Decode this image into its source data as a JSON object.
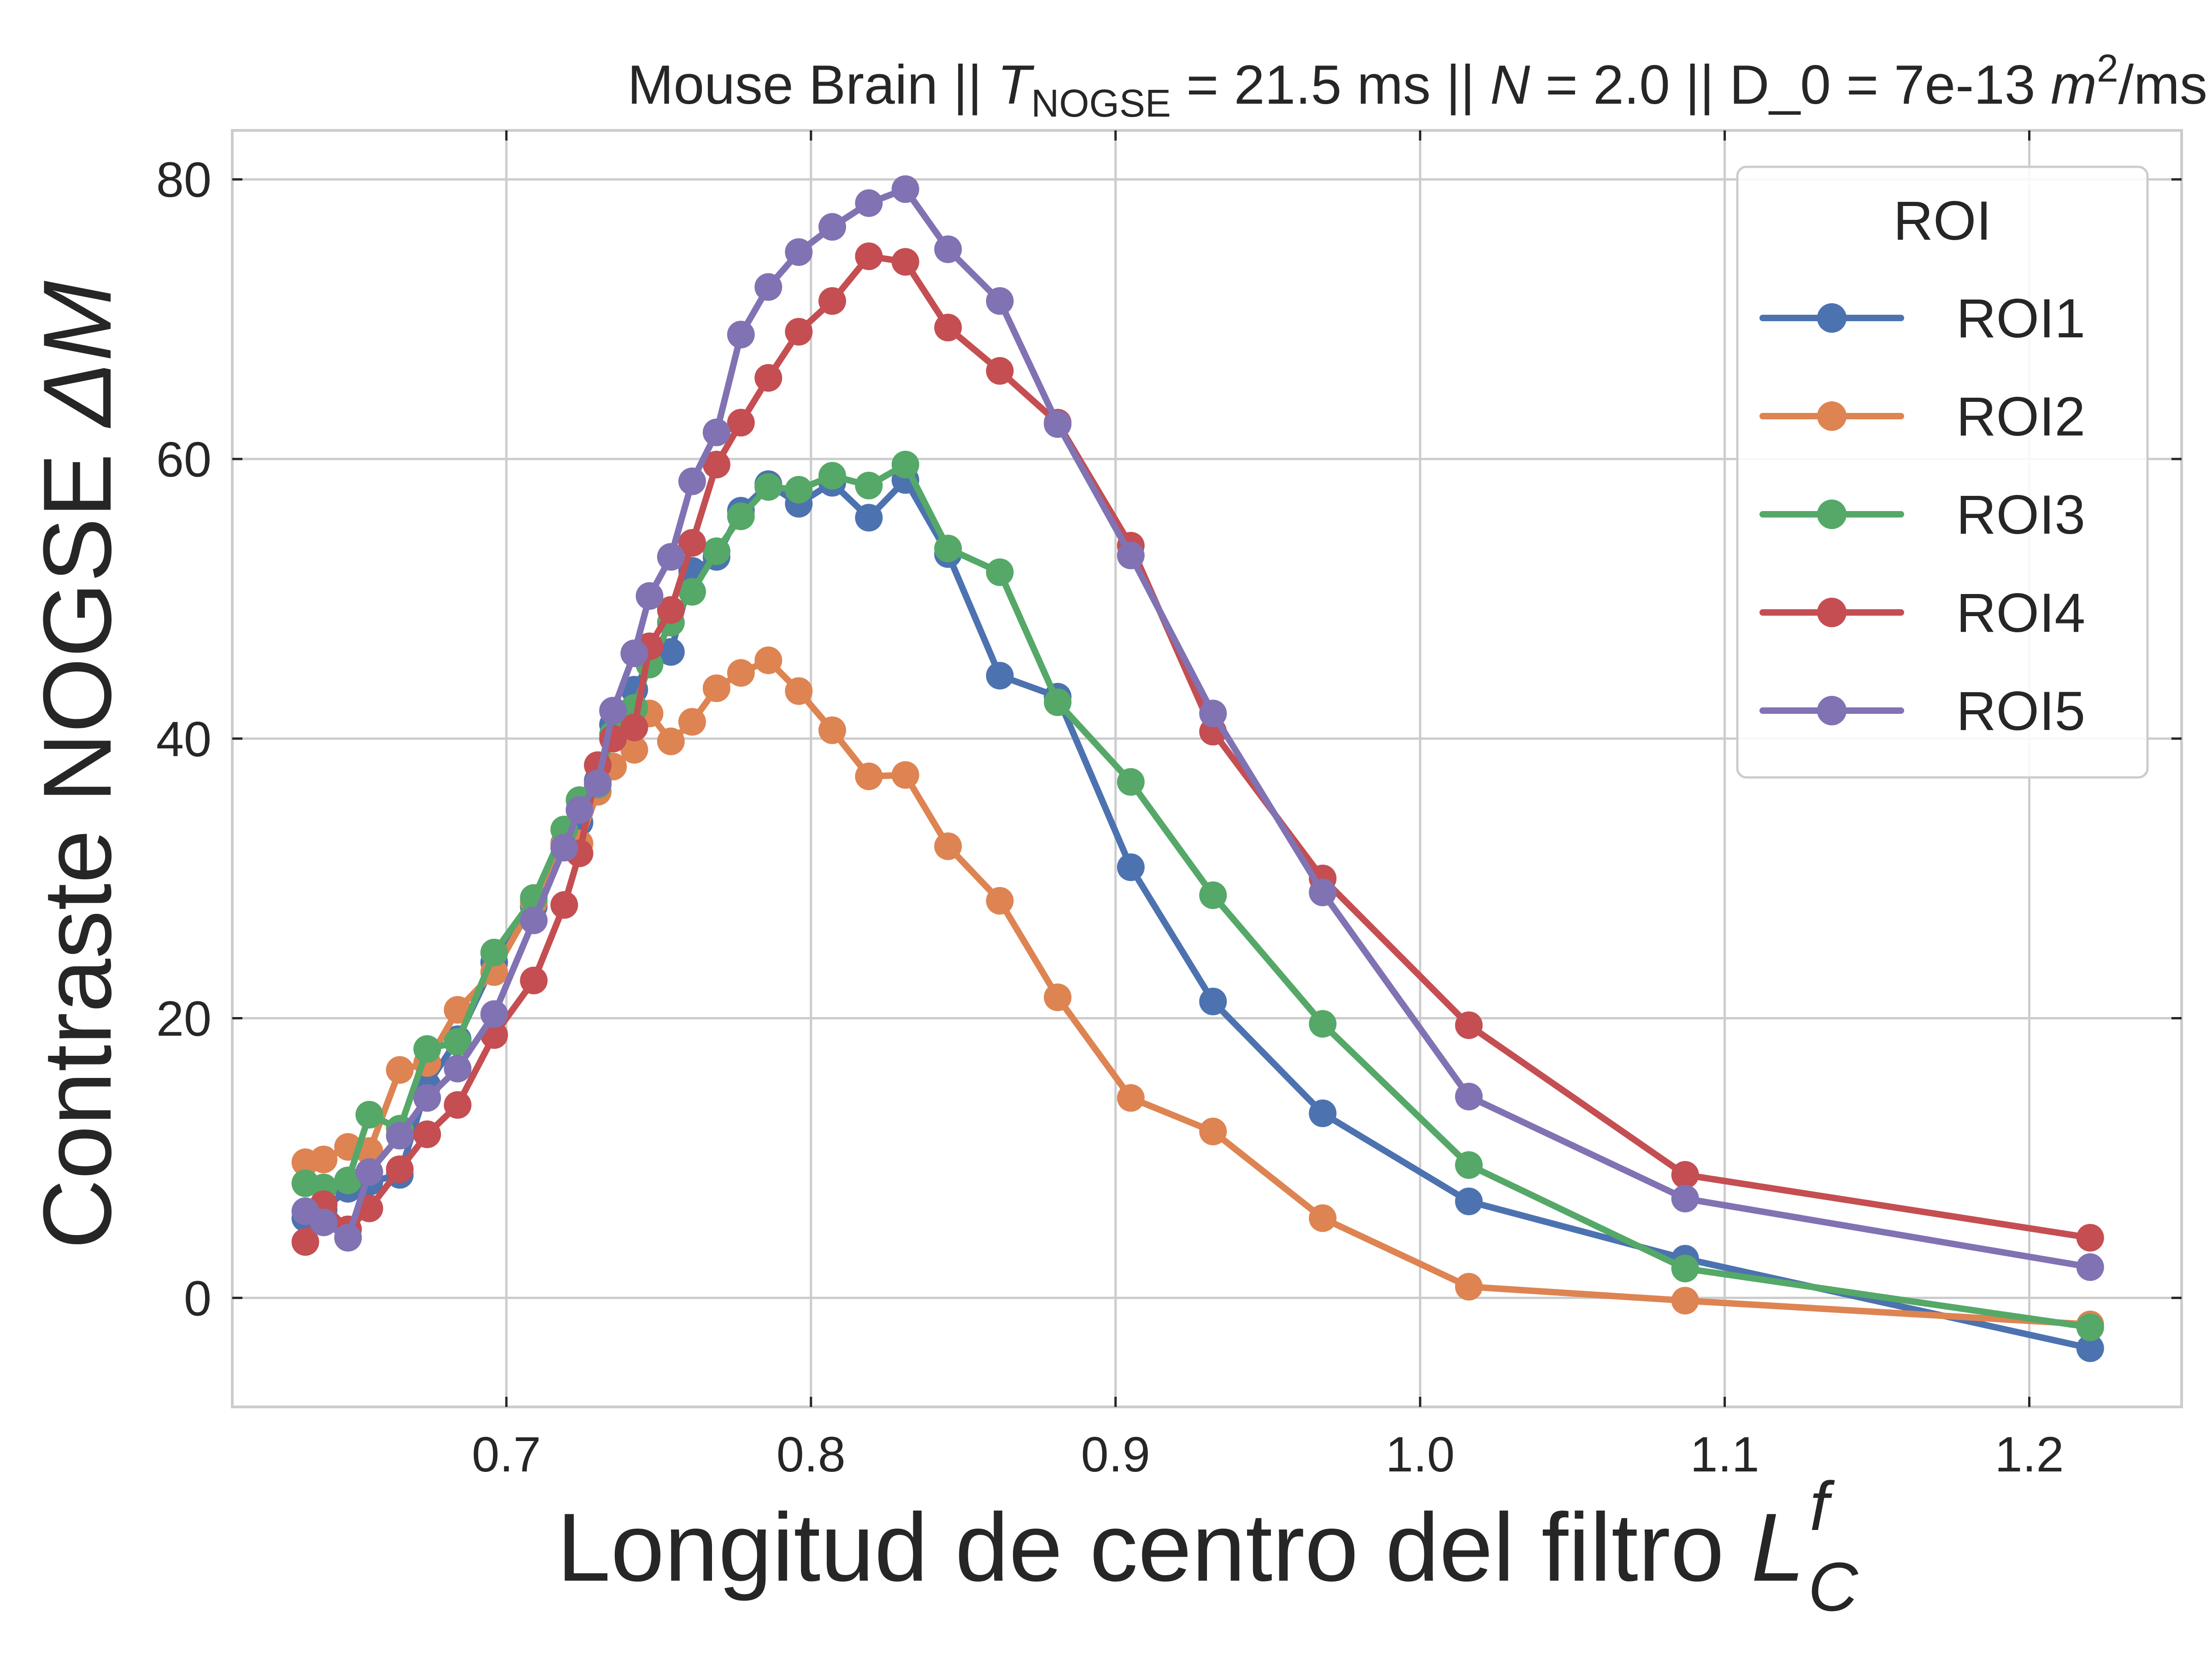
{
  "chart_data": {
    "type": "line",
    "title_parts": {
      "prefix": "Mouse Brain || ",
      "t_symbol": "T",
      "t_subscript": "NOGSE",
      "t_value": " = 21.5 ms || ",
      "n_symbol": "N",
      "n_value": " = 2.0 || D_0 = 7e-13 ",
      "unit_m": "m",
      "unit_exp": "2",
      "unit_rest": "/ms"
    },
    "xlabel_parts": {
      "text": "Longitud de centro del filtro ",
      "symbol": "L",
      "superscript": "f",
      "subscript": "C"
    },
    "ylabel_parts": {
      "text": "Contraste NOGSE ",
      "symbol": "ΔM"
    },
    "xlim": [
      0.61,
      1.25
    ],
    "ylim": [
      -7.8,
      83.5
    ],
    "xticks": [
      0.7,
      0.8,
      0.9,
      1.0,
      1.1,
      1.2
    ],
    "xtick_labels": [
      "0.7",
      "0.8",
      "0.9",
      "1.0",
      "1.1",
      "1.2"
    ],
    "yticks": [
      0,
      20,
      40,
      60,
      80
    ],
    "ytick_labels": [
      "0",
      "20",
      "40",
      "60",
      "80"
    ],
    "grid": true,
    "legend": {
      "title": "ROI",
      "placement": "top-right"
    },
    "x": [
      0.634,
      0.64,
      0.648,
      0.655,
      0.665,
      0.674,
      0.684,
      0.696,
      0.709,
      0.719,
      0.724,
      0.73,
      0.735,
      0.742,
      0.747,
      0.754,
      0.761,
      0.769,
      0.777,
      0.786,
      0.796,
      0.807,
      0.819,
      0.831,
      0.845,
      0.862,
      0.881,
      0.905,
      0.932,
      0.968,
      1.016,
      1.087,
      1.22
    ],
    "series": [
      {
        "name": "ROI1",
        "color": "#4c72b0",
        "values": [
          5.7,
          6.3,
          7.8,
          8.3,
          8.8,
          15.2,
          18.5,
          24.0,
          28.0,
          32.5,
          34.0,
          37.0,
          41.0,
          43.5,
          45.5,
          46.2,
          52.0,
          53.0,
          56.3,
          58.2,
          56.8,
          58.3,
          55.8,
          58.5,
          53.2,
          44.5,
          43.0,
          30.8,
          21.2,
          13.2,
          6.9,
          2.8,
          -3.6
        ]
      },
      {
        "name": "ROI2",
        "color": "#dd8452",
        "values": [
          9.7,
          9.9,
          10.8,
          10.5,
          16.3,
          16.8,
          20.6,
          23.3,
          28.3,
          32.4,
          32.5,
          36.2,
          38.0,
          39.2,
          41.8,
          39.8,
          41.2,
          43.6,
          44.7,
          45.6,
          43.4,
          40.6,
          37.3,
          37.4,
          32.3,
          28.4,
          21.5,
          14.3,
          11.9,
          5.7,
          0.8,
          -0.2,
          -1.9
        ]
      },
      {
        "name": "ROI3",
        "color": "#55a868",
        "values": [
          8.2,
          7.9,
          8.4,
          13.1,
          12.1,
          17.8,
          18.3,
          24.7,
          28.6,
          33.5,
          35.6,
          36.7,
          40.3,
          42.2,
          45.3,
          48.3,
          50.5,
          53.4,
          55.9,
          58.0,
          57.8,
          58.8,
          58.1,
          59.6,
          53.6,
          51.9,
          42.6,
          36.9,
          28.8,
          19.6,
          9.5,
          2.1,
          -2.1
        ]
      },
      {
        "name": "ROI4",
        "color": "#c44e52",
        "values": [
          4.0,
          6.7,
          4.9,
          6.4,
          9.2,
          11.7,
          13.8,
          18.8,
          22.7,
          28.1,
          31.8,
          38.1,
          40.0,
          40.8,
          46.6,
          49.2,
          54.0,
          59.6,
          62.6,
          65.8,
          69.1,
          71.3,
          74.5,
          74.1,
          69.4,
          66.3,
          62.6,
          53.8,
          40.5,
          30.0,
          19.5,
          8.8,
          4.3
        ]
      },
      {
        "name": "ROI5",
        "color": "#8172b3",
        "values": [
          6.2,
          5.4,
          4.3,
          9.0,
          11.6,
          14.3,
          16.4,
          20.3,
          27.0,
          32.2,
          34.9,
          36.8,
          42.0,
          46.1,
          50.2,
          53.0,
          58.4,
          61.9,
          68.9,
          72.3,
          74.8,
          76.6,
          78.3,
          79.3,
          75.0,
          71.3,
          62.5,
          53.1,
          41.8,
          29.0,
          14.4,
          7.1,
          2.2
        ]
      }
    ]
  }
}
